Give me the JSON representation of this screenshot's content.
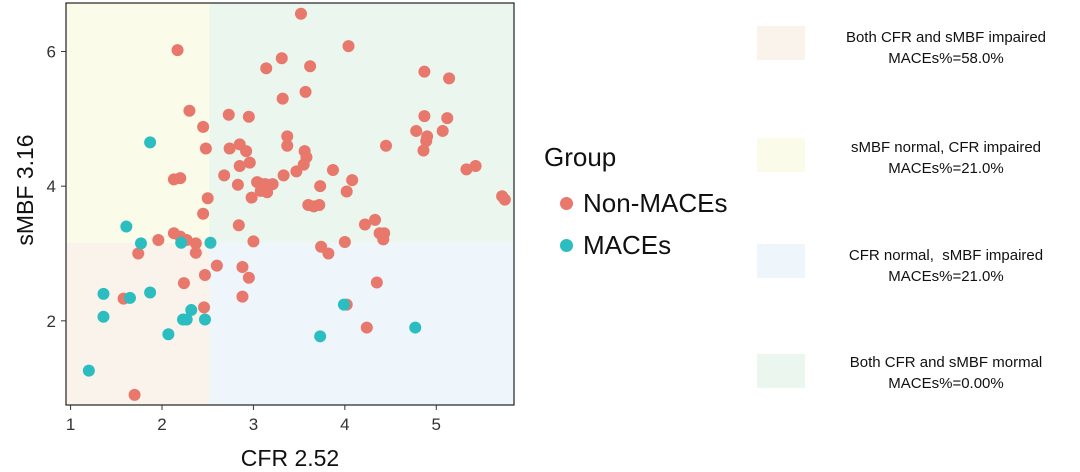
{
  "chart_data": {
    "type": "scatter",
    "xlabel": "CFR  2.52",
    "ylabel": "sMBF  3.16",
    "xlim": [
      0.95,
      5.85
    ],
    "ylim": [
      0.75,
      6.72
    ],
    "x_ticks": [
      1,
      2,
      3,
      4,
      5
    ],
    "y_ticks": [
      2,
      4,
      6
    ],
    "thresholds": {
      "x": 2.52,
      "y": 3.16
    },
    "grid": false,
    "legend": {
      "title": "Group",
      "position": "right",
      "entries": [
        "Non-MACEs",
        "MACEs"
      ]
    },
    "series": [
      {
        "name": "Non-MACEs",
        "color": "#E8776C",
        "points": [
          [
            2.17,
            6.02
          ],
          [
            3.52,
            6.56
          ],
          [
            4.04,
            6.08
          ],
          [
            3.14,
            5.75
          ],
          [
            3.31,
            5.9
          ],
          [
            3.62,
            5.78
          ],
          [
            4.87,
            5.7
          ],
          [
            5.14,
            5.6
          ],
          [
            2.3,
            5.12
          ],
          [
            3.32,
            5.3
          ],
          [
            3.57,
            5.4
          ],
          [
            2.45,
            4.88
          ],
          [
            2.73,
            5.06
          ],
          [
            2.95,
            5.03
          ],
          [
            4.87,
            5.04
          ],
          [
            5.12,
            5.01
          ],
          [
            3.37,
            4.74
          ],
          [
            4.78,
            4.82
          ],
          [
            5.07,
            4.82
          ],
          [
            4.9,
            4.74
          ],
          [
            2.85,
            4.62
          ],
          [
            2.48,
            4.56
          ],
          [
            2.74,
            4.56
          ],
          [
            2.92,
            4.52
          ],
          [
            3.37,
            4.6
          ],
          [
            3.56,
            4.52
          ],
          [
            4.45,
            4.6
          ],
          [
            4.89,
            4.67
          ],
          [
            4.86,
            4.53
          ],
          [
            3.58,
            4.43
          ],
          [
            3.55,
            4.32
          ],
          [
            2.96,
            4.35
          ],
          [
            2.85,
            4.3
          ],
          [
            2.68,
            4.16
          ],
          [
            3.33,
            4.16
          ],
          [
            3.47,
            4.22
          ],
          [
            3.87,
            4.24
          ],
          [
            5.33,
            4.25
          ],
          [
            5.43,
            4.3
          ],
          [
            2.13,
            4.1
          ],
          [
            2.2,
            4.12
          ],
          [
            2.83,
            4.02
          ],
          [
            3.04,
            4.06
          ],
          [
            3.07,
            4.04
          ],
          [
            3.13,
            4.03
          ],
          [
            3.21,
            4.03
          ],
          [
            3.08,
            3.93
          ],
          [
            3.15,
            3.91
          ],
          [
            3.73,
            4.0
          ],
          [
            4.02,
            3.92
          ],
          [
            4.08,
            4.09
          ],
          [
            2.98,
            3.83
          ],
          [
            2.5,
            3.82
          ],
          [
            3.6,
            3.72
          ],
          [
            3.66,
            3.7
          ],
          [
            3.72,
            3.72
          ],
          [
            5.72,
            3.85
          ],
          [
            5.75,
            3.8
          ],
          [
            2.45,
            3.59
          ],
          [
            2.84,
            3.42
          ],
          [
            2.13,
            3.3
          ],
          [
            2.2,
            3.25
          ],
          [
            2.27,
            3.2
          ],
          [
            3.0,
            3.18
          ],
          [
            4.0,
            3.17
          ],
          [
            4.33,
            3.5
          ],
          [
            4.22,
            3.43
          ],
          [
            4.38,
            3.3
          ],
          [
            4.43,
            3.3
          ],
          [
            4.42,
            3.21
          ],
          [
            1.96,
            3.2
          ],
          [
            1.74,
            3.0
          ],
          [
            2.37,
            3.15
          ],
          [
            2.37,
            3.01
          ],
          [
            3.74,
            3.1
          ],
          [
            3.82,
            3.0
          ],
          [
            2.6,
            2.82
          ],
          [
            2.88,
            2.8
          ],
          [
            2.47,
            2.68
          ],
          [
            2.24,
            2.56
          ],
          [
            2.95,
            2.64
          ],
          [
            4.35,
            2.57
          ],
          [
            1.58,
            2.33
          ],
          [
            2.88,
            2.36
          ],
          [
            2.46,
            2.2
          ],
          [
            4.02,
            2.24
          ],
          [
            4.24,
            1.9
          ],
          [
            1.7,
            0.9
          ]
        ]
      },
      {
        "name": "MACEs",
        "color": "#2BBDC0",
        "points": [
          [
            1.87,
            4.65
          ],
          [
            1.61,
            3.4
          ],
          [
            1.77,
            3.15
          ],
          [
            2.21,
            3.16
          ],
          [
            2.53,
            3.16
          ],
          [
            1.36,
            2.4
          ],
          [
            1.65,
            2.34
          ],
          [
            1.87,
            2.42
          ],
          [
            1.36,
            2.06
          ],
          [
            2.32,
            2.16
          ],
          [
            2.23,
            2.02
          ],
          [
            2.27,
            2.02
          ],
          [
            2.47,
            2.02
          ],
          [
            2.07,
            1.8
          ],
          [
            3.99,
            2.24
          ],
          [
            3.73,
            1.77
          ],
          [
            4.77,
            1.9
          ],
          [
            1.2,
            1.26
          ]
        ]
      }
    ],
    "quadrant_legend": [
      {
        "color": "#FAF3EC",
        "lines": [
          "Both CFR and sMBF impaired",
          "MACEs%=58.0%"
        ]
      },
      {
        "color": "#FBFBE9",
        "lines": [
          "sMBF normal, CFR impaired",
          "MACEs%=21.0%"
        ]
      },
      {
        "color": "#EEF5FB",
        "lines": [
          "CFR normal,  sMBF impaired",
          "MACEs%=21.0%"
        ]
      },
      {
        "color": "#EAF6EE",
        "lines": [
          "Both CFR and sMBF mormal",
          "MACEs%=0.00%"
        ]
      }
    ]
  }
}
